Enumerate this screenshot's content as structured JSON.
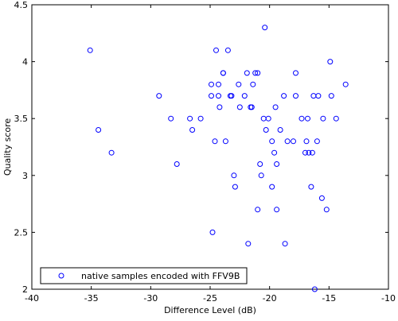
{
  "chart_data": {
    "type": "scatter",
    "title": "",
    "xlabel": "Difference Level (dB)",
    "ylabel": "Quality score",
    "xlim": [
      -40,
      -10
    ],
    "ylim": [
      2,
      4.5
    ],
    "xticks": [
      -40,
      -35,
      -30,
      -25,
      -20,
      -15,
      -10
    ],
    "yticks": [
      2,
      2.5,
      3,
      3.5,
      4,
      4.5
    ],
    "grid": false,
    "legend_position": "bottom-left",
    "marker": "open-circle",
    "series": [
      {
        "name": "native samples encoded with FFV9B",
        "color": "#0000ff",
        "points": [
          [
            -35.1,
            4.1
          ],
          [
            -34.4,
            3.4
          ],
          [
            -33.3,
            3.2
          ],
          [
            -29.3,
            3.7
          ],
          [
            -28.3,
            3.5
          ],
          [
            -27.8,
            3.1
          ],
          [
            -26.7,
            3.5
          ],
          [
            -26.5,
            3.4
          ],
          [
            -25.8,
            3.5
          ],
          [
            -24.9,
            3.7
          ],
          [
            -24.9,
            3.8
          ],
          [
            -24.8,
            2.5
          ],
          [
            -24.6,
            3.3
          ],
          [
            -24.5,
            4.1
          ],
          [
            -24.3,
            3.7
          ],
          [
            -24.3,
            3.8
          ],
          [
            -24.2,
            3.6
          ],
          [
            -23.9,
            3.9
          ],
          [
            -23.9,
            3.9
          ],
          [
            -23.7,
            3.3
          ],
          [
            -23.5,
            4.1
          ],
          [
            -23.3,
            3.7
          ],
          [
            -23.2,
            3.7
          ],
          [
            -23.0,
            3.0
          ],
          [
            -22.9,
            2.9
          ],
          [
            -22.6,
            3.8
          ],
          [
            -22.5,
            3.6
          ],
          [
            -22.1,
            3.7
          ],
          [
            -21.9,
            3.9
          ],
          [
            -21.8,
            2.4
          ],
          [
            -21.6,
            3.6
          ],
          [
            -21.5,
            3.6
          ],
          [
            -21.4,
            3.8
          ],
          [
            -21.2,
            3.9
          ],
          [
            -21.0,
            3.9
          ],
          [
            -21.0,
            2.7
          ],
          [
            -20.8,
            3.1
          ],
          [
            -20.7,
            3.0
          ],
          [
            -20.5,
            3.5
          ],
          [
            -20.4,
            4.3
          ],
          [
            -20.3,
            3.4
          ],
          [
            -20.1,
            3.5
          ],
          [
            -19.8,
            2.9
          ],
          [
            -19.8,
            3.3
          ],
          [
            -19.6,
            3.2
          ],
          [
            -19.5,
            3.6
          ],
          [
            -19.4,
            2.7
          ],
          [
            -19.4,
            3.1
          ],
          [
            -19.1,
            3.4
          ],
          [
            -18.8,
            3.7
          ],
          [
            -18.7,
            2.4
          ],
          [
            -18.5,
            3.3
          ],
          [
            -18.0,
            3.3
          ],
          [
            -17.8,
            3.9
          ],
          [
            -17.8,
            3.7
          ],
          [
            -17.3,
            3.5
          ],
          [
            -17.0,
            3.2
          ],
          [
            -16.9,
            3.3
          ],
          [
            -16.8,
            3.5
          ],
          [
            -16.7,
            3.2
          ],
          [
            -16.5,
            2.9
          ],
          [
            -16.4,
            3.2
          ],
          [
            -16.3,
            3.7
          ],
          [
            -16.2,
            2.0
          ],
          [
            -16.0,
            3.3
          ],
          [
            -15.9,
            3.7
          ],
          [
            -15.6,
            2.8
          ],
          [
            -15.5,
            3.5
          ],
          [
            -15.2,
            2.7
          ],
          [
            -14.8,
            3.7
          ],
          [
            -14.9,
            4.0
          ],
          [
            -14.4,
            3.5
          ],
          [
            -13.6,
            3.8
          ]
        ]
      }
    ]
  }
}
